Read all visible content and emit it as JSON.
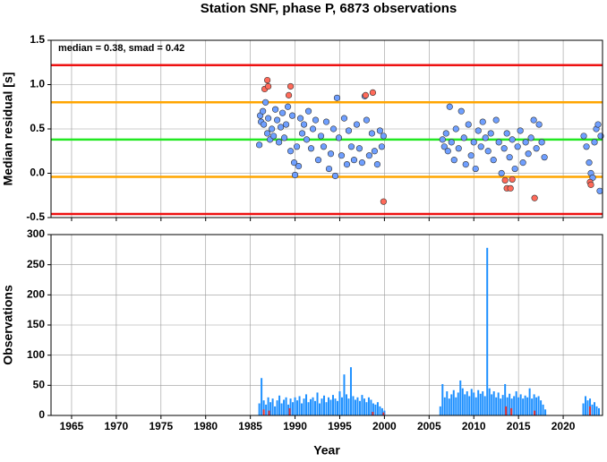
{
  "chart_data": [
    {
      "type": "scatter",
      "title": "Station SNF, phase P, 6873 observations",
      "annotation": "median = 0.38, smad = 0.42",
      "ylabel": "Median residual [s]",
      "xlim": [
        1962.7,
        2024.4
      ],
      "xticks": [
        1965,
        1970,
        1975,
        1980,
        1985,
        1990,
        1995,
        2000,
        2005,
        2010,
        2015,
        2020
      ],
      "ylim": [
        -0.5,
        1.5
      ],
      "yticks": [
        {
          "value": -0.5,
          "label": "-0.5"
        },
        {
          "value": 0,
          "label": "0.0"
        },
        0.5,
        {
          "value": 1,
          "label": "1.0"
        },
        1.5
      ],
      "grid": true,
      "hlines": [
        {
          "value": 1.22,
          "color": "#ee1111"
        },
        {
          "value": 0.8,
          "color": "#ffa500"
        },
        {
          "value": 0.38,
          "color": "#22e822"
        },
        {
          "value": -0.04,
          "color": "#ffa500"
        },
        {
          "value": -0.46,
          "color": "#ee1111"
        }
      ],
      "series": [
        {
          "color": "#6f9fff",
          "x": [
            1986.0,
            1986.1,
            1986.2,
            1986.4,
            1986.5,
            1986.7,
            1986.9,
            1987.0,
            1987.2,
            1987.4,
            1987.6,
            1987.8,
            1988.0,
            1988.2,
            1988.4,
            1988.6,
            1988.8,
            1989.0,
            1989.2,
            1989.5,
            1989.7,
            1989.9,
            1990.0,
            1990.2,
            1990.4,
            1990.6,
            1990.8,
            1991.0,
            1991.3,
            1991.5,
            1991.8,
            1992.0,
            1992.3,
            1992.6,
            1992.9,
            1993.2,
            1993.5,
            1993.8,
            1994.0,
            1994.3,
            1994.5,
            1994.7,
            1994.9,
            1995.2,
            1995.5,
            1995.8,
            1996.0,
            1996.3,
            1996.6,
            1996.9,
            1997.2,
            1997.5,
            1997.8,
            1998.0,
            1998.3,
            1998.6,
            1998.9,
            1999.2,
            1999.5,
            1999.7,
            1999.9,
            2006.5,
            2006.7,
            2006.9,
            2007.1,
            2007.3,
            2007.5,
            2007.8,
            2008.0,
            2008.3,
            2008.6,
            2008.9,
            2009.1,
            2009.4,
            2009.7,
            2010.0,
            2010.2,
            2010.5,
            2010.8,
            2011.0,
            2011.3,
            2011.6,
            2011.9,
            2012.2,
            2012.5,
            2012.8,
            2013.1,
            2013.4,
            2013.7,
            2014.0,
            2014.3,
            2014.6,
            2014.9,
            2015.2,
            2015.5,
            2015.8,
            2016.1,
            2016.4,
            2016.7,
            2017.0,
            2017.3,
            2017.6,
            2017.9,
            2022.3,
            2022.6,
            2022.9,
            2023.1,
            2023.3,
            2023.5,
            2023.7,
            2023.9,
            2024.1,
            2024.2
          ],
          "values": [
            0.32,
            0.65,
            0.58,
            0.7,
            0.55,
            0.8,
            0.45,
            0.62,
            0.38,
            0.5,
            0.42,
            0.72,
            0.6,
            0.35,
            0.52,
            0.68,
            0.4,
            0.55,
            0.75,
            0.25,
            0.65,
            0.12,
            -0.02,
            0.3,
            0.08,
            0.62,
            0.45,
            0.55,
            0.38,
            0.7,
            0.28,
            0.5,
            0.6,
            0.15,
            0.42,
            0.3,
            0.58,
            0.05,
            0.22,
            0.5,
            -0.03,
            0.85,
            0.4,
            0.2,
            0.62,
            0.1,
            0.48,
            0.3,
            0.15,
            0.55,
            0.28,
            0.12,
            0.87,
            0.6,
            0.2,
            0.45,
            0.25,
            0.1,
            0.48,
            0.3,
            0.42,
            0.38,
            0.3,
            0.45,
            0.25,
            0.75,
            0.35,
            0.15,
            0.5,
            0.28,
            0.7,
            0.4,
            0.1,
            0.55,
            0.2,
            0.35,
            0.05,
            0.48,
            0.3,
            0.58,
            0.4,
            0.25,
            0.45,
            0.15,
            0.6,
            0.35,
            0.0,
            0.28,
            0.45,
            0.18,
            0.38,
            0.05,
            0.3,
            0.48,
            0.12,
            0.35,
            0.22,
            0.4,
            0.6,
            0.28,
            0.55,
            0.35,
            0.18,
            0.42,
            0.3,
            0.12,
            0.0,
            -0.05,
            0.35,
            0.5,
            0.55,
            -0.2,
            0.42
          ]
        },
        {
          "color": "#ff6a5a",
          "x": [
            1986.6,
            1986.9,
            1987.0,
            1989.3,
            1989.5,
            1997.9,
            1998.7,
            1999.9,
            2013.5,
            2013.7,
            2014.1,
            2014.3,
            2016.8,
            2023.0,
            2023.1
          ],
          "values": [
            0.95,
            1.05,
            0.98,
            0.88,
            0.98,
            0.88,
            0.91,
            -0.32,
            -0.08,
            -0.17,
            -0.17,
            -0.07,
            -0.28,
            -0.1,
            -0.13
          ]
        }
      ]
    },
    {
      "type": "bar",
      "ylabel": "Observations",
      "xlabel": "Year",
      "xlim": [
        1962.7,
        2024.4
      ],
      "xticks": [
        1965,
        1970,
        1975,
        1980,
        1985,
        1990,
        1995,
        2000,
        2005,
        2010,
        2015,
        2020
      ],
      "ylim": [
        0,
        300
      ],
      "yticks": [
        0,
        50,
        100,
        150,
        200,
        250,
        300
      ],
      "grid": true,
      "series": [
        {
          "color": "#1e90ff",
          "x": [
            1986.0,
            1986.25,
            1986.5,
            1986.75,
            1987.0,
            1987.25,
            1987.5,
            1987.75,
            1988.0,
            1988.25,
            1988.5,
            1988.75,
            1989.0,
            1989.25,
            1989.5,
            1989.75,
            1990.0,
            1990.25,
            1990.5,
            1990.75,
            1991.0,
            1991.25,
            1991.5,
            1991.75,
            1992.0,
            1992.25,
            1992.5,
            1992.75,
            1993.0,
            1993.25,
            1993.5,
            1993.75,
            1994.0,
            1994.25,
            1994.5,
            1994.75,
            1995.0,
            1995.25,
            1995.5,
            1995.75,
            1996.0,
            1996.25,
            1996.5,
            1996.75,
            1997.0,
            1997.25,
            1997.5,
            1997.75,
            1998.0,
            1998.25,
            1998.5,
            1998.75,
            1999.0,
            1999.25,
            1999.5,
            1999.75,
            2000.0,
            2006.25,
            2006.5,
            2006.75,
            2007.0,
            2007.25,
            2007.5,
            2007.75,
            2008.0,
            2008.25,
            2008.5,
            2008.75,
            2009.0,
            2009.25,
            2009.5,
            2009.75,
            2010.0,
            2010.25,
            2010.5,
            2010.75,
            2011.0,
            2011.25,
            2011.5,
            2011.75,
            2012.0,
            2012.25,
            2012.5,
            2012.75,
            2013.0,
            2013.25,
            2013.5,
            2013.75,
            2014.0,
            2014.25,
            2014.5,
            2014.75,
            2015.0,
            2015.25,
            2015.5,
            2015.75,
            2016.0,
            2016.25,
            2016.5,
            2016.75,
            2017.0,
            2017.25,
            2017.5,
            2017.75,
            2018.0,
            2022.25,
            2022.5,
            2022.75,
            2023.0,
            2023.25,
            2023.5,
            2023.75,
            2024.0
          ],
          "values": [
            20,
            62,
            25,
            18,
            30,
            22,
            28,
            15,
            25,
            33,
            20,
            26,
            30,
            18,
            28,
            22,
            30,
            25,
            32,
            20,
            28,
            35,
            22,
            27,
            30,
            24,
            38,
            20,
            28,
            33,
            22,
            30,
            26,
            34,
            28,
            24,
            40,
            30,
            68,
            35,
            28,
            80,
            32,
            26,
            30,
            24,
            34,
            28,
            22,
            30,
            26,
            20,
            18,
            22,
            15,
            12,
            8,
            15,
            52,
            30,
            40,
            28,
            35,
            42,
            30,
            38,
            58,
            45,
            35,
            40,
            32,
            44,
            38,
            30,
            42,
            36,
            40,
            32,
            278,
            45,
            35,
            40,
            30,
            38,
            28,
            34,
            52,
            30,
            36,
            28,
            32,
            40,
            30,
            35,
            28,
            33,
            30,
            45,
            28,
            35,
            30,
            32,
            25,
            18,
            10,
            20,
            32,
            25,
            28,
            18,
            22,
            15,
            12
          ]
        },
        {
          "color": "#e83030",
          "x": [
            1986.5,
            1987.1,
            1989.4,
            1998.7,
            1999.9,
            2013.6,
            2014.2,
            2016.8,
            2023.0
          ],
          "values": [
            10,
            8,
            12,
            6,
            5,
            15,
            12,
            8,
            15
          ]
        }
      ]
    }
  ]
}
